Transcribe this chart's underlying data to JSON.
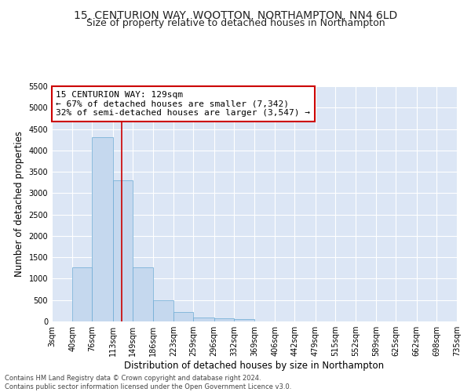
{
  "title_line1": "15, CENTURION WAY, WOOTTON, NORTHAMPTON, NN4 6LD",
  "title_line2": "Size of property relative to detached houses in Northampton",
  "xlabel": "Distribution of detached houses by size in Northampton",
  "ylabel": "Number of detached properties",
  "bar_values": [
    0,
    1270,
    4300,
    3300,
    1270,
    490,
    215,
    90,
    65,
    55,
    0,
    0,
    0,
    0,
    0,
    0,
    0,
    0,
    0,
    0
  ],
  "bin_edges": [
    3,
    40,
    76,
    113,
    149,
    186,
    223,
    259,
    296,
    332,
    369,
    406,
    442,
    479,
    515,
    552,
    589,
    625,
    662,
    698,
    735
  ],
  "tick_labels": [
    "3sqm",
    "40sqm",
    "76sqm",
    "113sqm",
    "149sqm",
    "186sqm",
    "223sqm",
    "259sqm",
    "296sqm",
    "332sqm",
    "369sqm",
    "406sqm",
    "442sqm",
    "479sqm",
    "515sqm",
    "552sqm",
    "589sqm",
    "625sqm",
    "662sqm",
    "698sqm",
    "735sqm"
  ],
  "bar_color": "#c5d8ee",
  "bar_edge_color": "#6aaad4",
  "vline_x": 129,
  "vline_color": "#cc0000",
  "annotation_text": "15 CENTURION WAY: 129sqm\n← 67% of detached houses are smaller (7,342)\n32% of semi-detached houses are larger (3,547) →",
  "annotation_box_color": "#ffffff",
  "annotation_box_edge": "#cc0000",
  "ylim": [
    0,
    5500
  ],
  "yticks": [
    0,
    500,
    1000,
    1500,
    2000,
    2500,
    3000,
    3500,
    4000,
    4500,
    5000,
    5500
  ],
  "background_color": "#dce6f5",
  "footer_text": "Contains HM Land Registry data © Crown copyright and database right 2024.\nContains public sector information licensed under the Open Government Licence v3.0.",
  "title_fontsize": 10,
  "subtitle_fontsize": 9,
  "axis_label_fontsize": 8.5,
  "tick_fontsize": 7,
  "annotation_fontsize": 8,
  "footer_fontsize": 6
}
